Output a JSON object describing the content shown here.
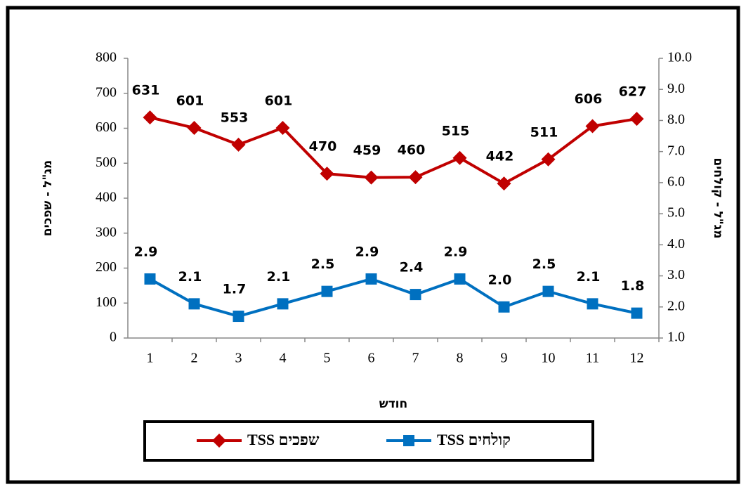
{
  "chart_data": {
    "type": "line",
    "x_label": "חודש",
    "y_label": "מג\"ל - שפכים",
    "y2_label": "מג\"ל - קולחים",
    "categories": [
      1,
      2,
      3,
      4,
      5,
      6,
      7,
      8,
      9,
      10,
      11,
      12
    ],
    "ylim": [
      0,
      800
    ],
    "yticks": [
      0,
      100,
      200,
      300,
      400,
      500,
      600,
      700,
      800
    ],
    "y2lim": [
      1,
      10
    ],
    "y2ticks": [
      {
        "value": 1,
        "label": "1.0"
      },
      {
        "value": 2,
        "label": "2.0"
      },
      {
        "value": 3,
        "label": "3.0"
      },
      {
        "value": 4,
        "label": "4.0"
      },
      {
        "value": 5,
        "label": "5.0"
      },
      {
        "value": 6,
        "label": "6.0"
      },
      {
        "value": 7,
        "label": "7.0"
      },
      {
        "value": 8,
        "label": "8.0"
      },
      {
        "value": 9,
        "label": "9.0"
      },
      {
        "value": 10,
        "label": "10.0"
      }
    ],
    "grid": false,
    "legend": "bottom",
    "series": [
      {
        "name": "TSS שפכים",
        "color": "#c00000",
        "marker": "diamond",
        "values": [
          631,
          601,
          553,
          601,
          470,
          459,
          460,
          515,
          442,
          511,
          606,
          627
        ]
      },
      {
        "name": "TSS קולחים",
        "color": "#0070c0",
        "marker": "square",
        "axis": "y2",
        "values": [
          2.9,
          2.1,
          1.7,
          2.1,
          2.5,
          2.9,
          2.4,
          2.9,
          2.0,
          2.5,
          2.1,
          1.8
        ],
        "value_labels": [
          "2.9",
          "2.1",
          "1.7",
          "2.1",
          "2.5",
          "2.9",
          "2.4",
          "2.9",
          "2.0",
          "2.5",
          "2.1",
          "1.8"
        ]
      }
    ]
  }
}
